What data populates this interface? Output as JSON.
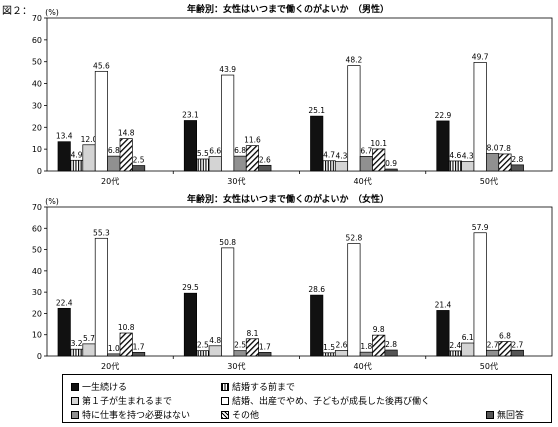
{
  "figure_label": "図２：",
  "chart_data": [
    {
      "type": "bar",
      "title": "年齢別：女性はいつまで働くのがよいか　（男性）",
      "ylabel": "(%)",
      "ylim": [
        0,
        70
      ],
      "yticks": [
        0,
        10,
        20,
        30,
        40,
        50,
        60,
        70
      ],
      "categories": [
        "20代",
        "30代",
        "40代",
        "50代"
      ],
      "series": [
        {
          "name": "一生続ける",
          "values": [
            13.4,
            23.1,
            25.1,
            22.9
          ],
          "value_labels": [
            "13.4",
            "23.1",
            "25.1",
            "22.9"
          ]
        },
        {
          "name": "結婚する前まで",
          "values": [
            4.9,
            5.5,
            4.7,
            4.6
          ],
          "value_labels": [
            "4.9",
            "5.5",
            "4.7",
            "4.6"
          ]
        },
        {
          "name": "第１子が生まれるまで",
          "values": [
            12.0,
            6.6,
            4.3,
            4.3
          ],
          "value_labels": [
            "12.0",
            "6.6",
            "4.3",
            "4.3"
          ]
        },
        {
          "name": "結婚、出産でやめ、子どもが成長した後再び働く",
          "values": [
            45.6,
            43.9,
            48.2,
            49.7
          ],
          "value_labels": [
            "45.6",
            "43.9",
            "48.2",
            "49.7"
          ]
        },
        {
          "name": "特に仕事を持つ必要はない",
          "values": [
            6.8,
            6.8,
            6.7,
            8.0
          ],
          "value_labels": [
            "6.8",
            "6.8",
            "6.7",
            "8.0"
          ]
        },
        {
          "name": "その他",
          "values": [
            14.8,
            11.6,
            10.1,
            7.8
          ],
          "value_labels": [
            "14.8",
            "11.6",
            "10.1",
            "7.8"
          ]
        },
        {
          "name": "無回答",
          "values": [
            2.5,
            2.6,
            0.9,
            2.8
          ],
          "value_labels": [
            "2.5",
            "2.6",
            "0.9",
            "2.8"
          ]
        }
      ]
    },
    {
      "type": "bar",
      "title": "年齢別：女性はいつまで働くのがよいか　（女性）",
      "ylabel": "(%)",
      "ylim": [
        0,
        70
      ],
      "yticks": [
        0,
        10,
        20,
        30,
        40,
        50,
        60,
        70
      ],
      "categories": [
        "20代",
        "30代",
        "40代",
        "50代"
      ],
      "series": [
        {
          "name": "一生続ける",
          "values": [
            22.4,
            29.5,
            28.6,
            21.4
          ],
          "value_labels": [
            "22.4",
            "29.5",
            "28.6",
            "21.4"
          ]
        },
        {
          "name": "結婚する前まで",
          "values": [
            3.2,
            2.5,
            1.5,
            2.4
          ],
          "value_labels": [
            "3.2",
            "2.5",
            "1.5",
            "2.4"
          ]
        },
        {
          "name": "第１子が生まれるまで",
          "values": [
            5.7,
            4.8,
            2.6,
            6.1
          ],
          "value_labels": [
            "5.7",
            "4.8",
            "2.6",
            "6.1"
          ]
        },
        {
          "name": "結婚、出産でやめ、子どもが成長した後再び働く",
          "values": [
            55.3,
            50.8,
            52.8,
            57.9
          ],
          "value_labels": [
            "55.3",
            "50.8",
            "52.8",
            "57.9"
          ]
        },
        {
          "name": "特に仕事を持つ必要はない",
          "values": [
            1.0,
            2.5,
            1.8,
            2.7
          ],
          "value_labels": [
            "1.0",
            "2.5",
            "1.8",
            "2.7"
          ]
        },
        {
          "name": "その他",
          "values": [
            10.8,
            8.1,
            9.8,
            6.8
          ],
          "value_labels": [
            "10.8",
            "8.1",
            "9.8",
            "6.8"
          ]
        },
        {
          "name": "無回答",
          "values": [
            1.7,
            1.7,
            2.8,
            2.7
          ],
          "value_labels": [
            "1.7",
            "1.7",
            "2.8",
            "2.7"
          ]
        }
      ]
    }
  ],
  "legend": {
    "items": [
      {
        "label": "一生続ける",
        "pattern": "solid-black"
      },
      {
        "label": "結婚する前まで",
        "pattern": "vertical-lines"
      },
      {
        "label": "第１子が生まれるまで",
        "pattern": "light-gray"
      },
      {
        "label": "結婚、出産でやめ、子どもが成長した後再び働く",
        "pattern": "white"
      },
      {
        "label": "特に仕事を持つ必要はない",
        "pattern": "medium-gray"
      },
      {
        "label": "その他",
        "pattern": "diagonal-hatch"
      },
      {
        "label": "無回答",
        "pattern": "dark-gray"
      }
    ]
  }
}
